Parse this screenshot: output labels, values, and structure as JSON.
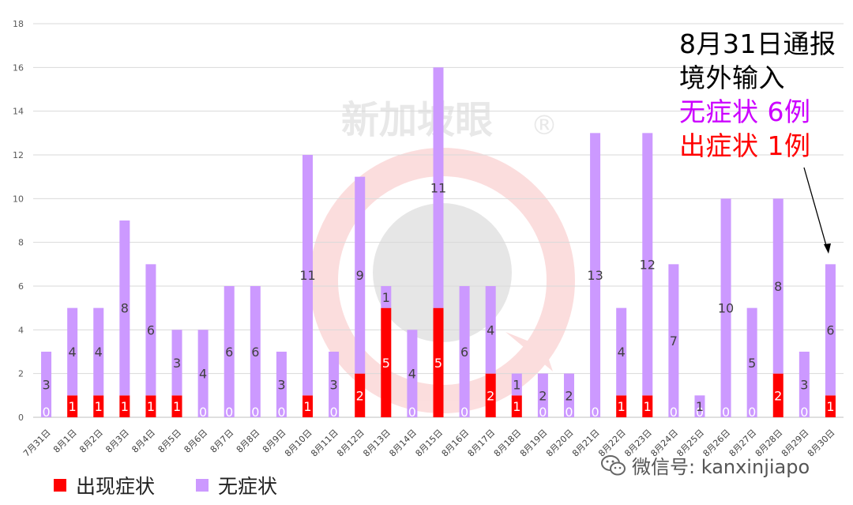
{
  "chart_data": {
    "type": "bar",
    "stacked": true,
    "categories": [
      "7月31日",
      "8月1日",
      "8月2日",
      "8月3日",
      "8月4日",
      "8月5日",
      "8月6日",
      "8月7日",
      "8月8日",
      "8月9日",
      "8月10日",
      "8月11日",
      "8月12日",
      "8月13日",
      "8月14日",
      "8月15日",
      "8月16日",
      "8月17日",
      "8月18日",
      "8月19日",
      "8月20日",
      "8月21日",
      "8月22日",
      "8月23日",
      "8月24日",
      "8月25日",
      "8月26日",
      "8月27日",
      "8月28日",
      "8月29日",
      "8月30日"
    ],
    "series": [
      {
        "name": "出现症状",
        "color": "#ff0000",
        "values": [
          0,
          1,
          1,
          1,
          1,
          1,
          0,
          0,
          0,
          0,
          1,
          0,
          2,
          5,
          0,
          5,
          0,
          2,
          1,
          0,
          0,
          0,
          1,
          1,
          0,
          0,
          0,
          0,
          2,
          0,
          1
        ]
      },
      {
        "name": "无症状",
        "color": "#cc99ff",
        "values": [
          3,
          4,
          4,
          8,
          6,
          3,
          4,
          6,
          6,
          3,
          11,
          3,
          9,
          1,
          4,
          11,
          6,
          4,
          1,
          2,
          2,
          13,
          4,
          12,
          7,
          1,
          10,
          5,
          8,
          3,
          6
        ]
      }
    ],
    "ylim": [
      0,
      18
    ],
    "yticks": [
      "0",
      "2",
      "4",
      "6",
      "8",
      "10",
      "12",
      "14",
      "16",
      "18"
    ],
    "grid": true,
    "legend_position": "bottom-left"
  },
  "annotation": {
    "line1": "8月31日通报",
    "line2": "境外输入",
    "line3": "无症状 6例",
    "line4": "出症状 1例",
    "line1_color": "#000000",
    "line3_color": "#cc00ff",
    "line4_color": "#ff0000"
  },
  "watermark": {
    "text": "新加坡眼",
    "mark": "®",
    "account": "微信号: kanxinjiapo",
    "icon": "wechat-icon"
  }
}
